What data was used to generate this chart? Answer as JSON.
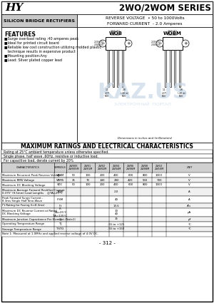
{
  "title": "2WO/2WOM SERIES",
  "subtitle_left": "SILICON BRIDGE RECTIFIERS",
  "subtitle_right1": "REVERSE VOLTAGE  • 50 to 1000Volts",
  "subtitle_right2": "FORWARD CURRENT  - 2.0 Amperes",
  "features_title": "FEATURES",
  "features": [
    "■Surge overload rating :40 amperes peak",
    "■Ideal for printed circuit board",
    "■Reliable low cost construction utilizing molded plastic",
    "   technique results in expensive product",
    "■Mounting position:Any",
    "■Lead: Silver plated copper lead"
  ],
  "max_ratings_title": "MAXIMUM RATINGS AND ELECTRICAL CHARACTERISTICS",
  "rating_note1": "Rating at 25°C ambient temperature unless otherwise specified.",
  "rating_note2": "Single phase, half wave ,60Hz, resistive or inductive load.",
  "rating_note3": "For capacitive load, derate current by 20%",
  "page_number": "- 312 -",
  "bg_color": "#ffffff",
  "watermark_text": "KAZ.US",
  "watermark_color": "#c8d8e8",
  "watermark_cyrillic": "ЭЛЕКТРОННЫЙ  ПОРТАЛ"
}
